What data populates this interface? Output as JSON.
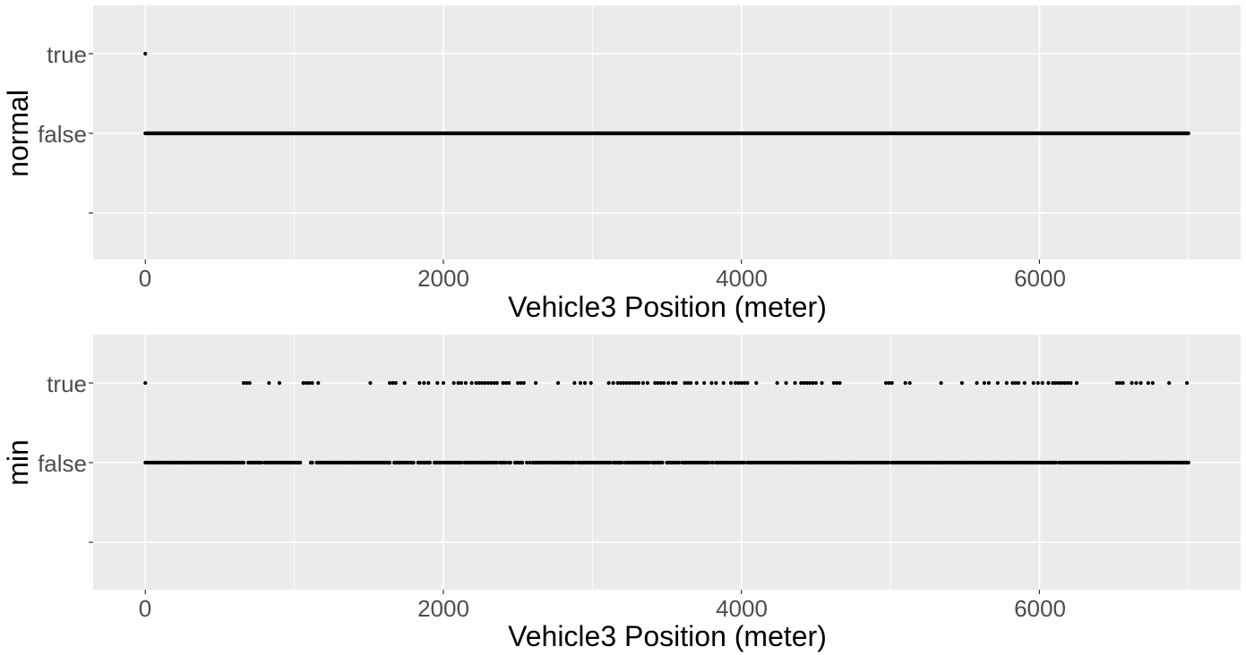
{
  "colors": {
    "panel_background": "#ebebeb",
    "grid": "#ffffff",
    "points": "#000000",
    "tick_text": "#4d4d4d",
    "title_text": "#000000"
  },
  "chart_data": [
    {
      "type": "scatter",
      "title": "",
      "xlabel": "Vehicle3 Position (meter)",
      "ylabel": "normal",
      "xlim": [
        -350,
        7350
      ],
      "x_ticks": [
        0,
        2000,
        4000,
        6000
      ],
      "x_tick_labels": [
        "0",
        "2000",
        "4000",
        "6000"
      ],
      "y_categories": [
        "",
        "false",
        "true"
      ],
      "grid": true,
      "series": [
        {
          "category": "true",
          "x": [
            0
          ]
        },
        {
          "category": "false",
          "continuous_range": [
            0,
            7000
          ],
          "x": []
        }
      ]
    },
    {
      "type": "scatter",
      "title": "",
      "xlabel": "Vehicle3 Position (meter)",
      "ylabel": "min",
      "xlim": [
        -350,
        7350
      ],
      "x_ticks": [
        0,
        2000,
        4000,
        6000
      ],
      "x_tick_labels": [
        "0",
        "2000",
        "4000",
        "6000"
      ],
      "y_categories": [
        "",
        "false",
        "true"
      ],
      "grid": true,
      "series": [
        {
          "category": "true",
          "x": [
            0,
            660,
            680,
            700,
            830,
            900,
            1060,
            1080,
            1100,
            1120,
            1160,
            1510,
            1640,
            1660,
            1680,
            1740,
            1840,
            1870,
            1900,
            1960,
            2000,
            2070,
            2100,
            2120,
            2150,
            2190,
            2220,
            2240,
            2260,
            2280,
            2300,
            2320,
            2340,
            2360,
            2400,
            2420,
            2440,
            2500,
            2520,
            2540,
            2620,
            2770,
            2880,
            2920,
            2950,
            2990,
            3110,
            3140,
            3170,
            3190,
            3210,
            3230,
            3250,
            3270,
            3290,
            3310,
            3340,
            3370,
            3420,
            3440,
            3460,
            3480,
            3510,
            3540,
            3560,
            3620,
            3640,
            3660,
            3700,
            3750,
            3800,
            3830,
            3880,
            3930,
            3960,
            3980,
            4000,
            4020,
            4040,
            4100,
            4240,
            4300,
            4360,
            4400,
            4420,
            4440,
            4460,
            4480,
            4500,
            4540,
            4620,
            4640,
            4660,
            4970,
            4990,
            5010,
            5100,
            5130,
            5340,
            5480,
            5580,
            5630,
            5660,
            5720,
            5780,
            5820,
            5840,
            5860,
            5900,
            5960,
            5990,
            6020,
            6060,
            6090,
            6110,
            6130,
            6150,
            6170,
            6190,
            6210,
            6250,
            6520,
            6540,
            6560,
            6620,
            6650,
            6680,
            6730,
            6760,
            6870,
            6990
          ]
        },
        {
          "category": "false",
          "x": [
            0,
            10,
            20,
            30,
            40,
            50,
            60,
            70,
            80,
            90,
            100,
            110,
            120,
            130,
            140,
            150,
            160,
            170,
            180,
            190,
            200,
            210,
            220,
            230,
            240,
            250,
            260,
            270,
            280,
            290,
            300,
            310,
            320,
            330,
            340,
            350,
            360,
            370,
            380,
            390,
            400,
            410,
            420,
            430,
            440,
            450,
            460,
            470,
            480,
            490,
            500,
            510,
            520,
            530,
            540,
            550,
            560,
            570,
            580,
            590,
            600,
            610,
            620,
            630,
            640,
            650,
            660,
            690,
            700,
            710,
            720,
            730,
            740,
            750,
            760,
            770,
            780,
            800,
            810,
            820,
            830,
            840,
            850,
            860,
            870,
            880,
            890,
            900,
            910,
            920,
            930,
            940,
            950,
            960,
            970,
            980,
            990,
            1000,
            1010,
            1020,
            1030,
            1040,
            1110,
            1120,
            1150,
            1160,
            1170,
            1180,
            1190,
            1200,
            1210,
            1220,
            1230,
            1240,
            1250,
            1260,
            1270,
            1280,
            1290,
            1300,
            1310,
            1320,
            1330,
            1340,
            1350,
            1360,
            1370,
            1380,
            1390,
            1400,
            1410,
            1420,
            1430,
            1440,
            1450,
            1460,
            1470,
            1480,
            1490,
            1500,
            1510,
            1520,
            1530,
            1540,
            1550,
            1560,
            1570,
            1580,
            1590,
            1600,
            1610,
            1620,
            1630,
            1640,
            1670,
            1680,
            1690,
            1700,
            1710,
            1720,
            1730,
            1740,
            1750,
            1760,
            1770,
            1780,
            1790,
            1800,
            1830,
            1840,
            1850,
            1860,
            1870,
            1880,
            1890,
            1900,
            1910,
            1940,
            1950,
            1960,
            1970,
            1980,
            1990,
            2000,
            2010,
            2020,
            2030,
            2040,
            2050,
            2060,
            2070,
            2080,
            2090,
            2100,
            2110,
            2120,
            2140,
            2150,
            2160,
            2170,
            2180,
            2190,
            2200,
            2210,
            2220,
            2230,
            2240,
            2250,
            2260,
            2270,
            2280,
            2290,
            2300,
            2310,
            2320,
            2330,
            2340,
            2350,
            2360,
            2380,
            2390,
            2400,
            2410,
            2420,
            2440,
            2450,
            2480,
            2490,
            2500,
            2510,
            2520,
            2530,
            2560,
            2580,
            2600,
            2610,
            2620,
            2630,
            2640,
            2650,
            2660,
            2670,
            2680,
            2690,
            2700,
            2710,
            2720,
            2730,
            2740,
            2750,
            2760,
            2770,
            2780,
            2790,
            2800,
            2810,
            2820,
            2830,
            2840,
            2850,
            2860,
            2870,
            2880,
            2900,
            2910,
            2920,
            2930,
            2940,
            2950,
            2960,
            2970,
            2980,
            2990,
            3000,
            3010,
            3020,
            3030,
            3040,
            3050,
            3060,
            3070,
            3080,
            3090,
            3100,
            3110,
            3120,
            3140,
            3150,
            3160,
            3170,
            3180,
            3190,
            3200,
            3220,
            3230,
            3240,
            3250,
            3260,
            3270,
            3280,
            3290,
            3300,
            3310,
            3320,
            3330,
            3340,
            3350,
            3360,
            3370,
            3380,
            3400,
            3410,
            3420,
            3430,
            3440,
            3450,
            3460,
            3470,
            3500,
            3510,
            3520,
            3530,
            3540,
            3550,
            3560,
            3570,
            3580,
            3600,
            3610,
            3620,
            3630,
            3640,
            3650,
            3660,
            3670,
            3680,
            3690,
            3700,
            3710,
            3720,
            3730,
            3740,
            3750,
            3760,
            3770,
            3780,
            3800,
            3810,
            3830,
            3840,
            3850,
            3860,
            3870,
            3880,
            3890,
            3900,
            3910,
            3920,
            3930,
            3940,
            3950,
            3960,
            3970,
            3980,
            3990,
            4000,
            4010,
            4020,
            4040,
            4050,
            4060,
            4070,
            4080,
            4090,
            4100,
            4110,
            4120,
            4130,
            4140,
            4150,
            4160,
            4170,
            4180,
            4190,
            4200,
            4210,
            4220,
            4230,
            4240,
            4250,
            4260,
            4270,
            4280,
            4290,
            4300,
            4310,
            4320,
            4330,
            4340,
            4350,
            4360,
            4370,
            4380,
            4390,
            4400,
            4410,
            4420,
            4430,
            4440,
            4450,
            4460,
            4470,
            4480,
            4490,
            4500,
            4510,
            4520,
            4530,
            4540,
            4550,
            4560,
            4570,
            4580,
            4590,
            4600,
            4610,
            4620,
            4630,
            4640,
            4650,
            4660,
            4670,
            4680,
            4690,
            4700,
            4710,
            4720,
            4730,
            4740,
            4750,
            4760,
            4770,
            4780,
            4790,
            4800,
            4810,
            4820,
            4830,
            4840,
            4850,
            4860,
            4870,
            4880,
            4890,
            4900,
            4910,
            4920,
            4930,
            4940,
            4950,
            4960,
            4970,
            4980,
            4990,
            5010,
            5020,
            5030,
            5040,
            5050,
            5060,
            5070,
            5080,
            5090,
            5100,
            5110,
            5120,
            5130,
            5140,
            5150,
            5160,
            5170,
            5180,
            5190,
            5200,
            5210,
            5220,
            5230,
            5240,
            5250,
            5260,
            5270,
            5280,
            5290,
            5300,
            5310,
            5320,
            5330,
            5340,
            5350,
            5360,
            5370,
            5380,
            5390,
            5400,
            5410,
            5420,
            5430,
            5440,
            5450,
            5460,
            5470,
            5480,
            5490,
            5500,
            5510,
            5520,
            5530,
            5540,
            5550,
            5560,
            5570,
            5580,
            5590,
            5600,
            5610,
            5620,
            5630,
            5640,
            5650,
            5660,
            5670,
            5680,
            5690,
            5700,
            5710,
            5720,
            5730,
            5740,
            5750,
            5760,
            5770,
            5780,
            5790,
            5800,
            5810,
            5820,
            5830,
            5840,
            5850,
            5860,
            5870,
            5880,
            5890,
            5900,
            5910,
            5920,
            5930,
            5940,
            5950,
            5960,
            5970,
            5980,
            5990,
            6000,
            6010,
            6020,
            6030,
            6040,
            6050,
            6060,
            6070,
            6080,
            6090,
            6100,
            6110,
            6130,
            6140,
            6150,
            6160,
            6170,
            6180,
            6190,
            6200,
            6210,
            6220,
            6230,
            6240,
            6250,
            6260,
            6270,
            6280,
            6290,
            6300,
            6310,
            6320,
            6330,
            6340,
            6350,
            6360,
            6370,
            6380,
            6390,
            6400,
            6410,
            6420,
            6430,
            6440,
            6450,
            6460,
            6470,
            6480,
            6490,
            6500,
            6510,
            6520,
            6530,
            6540,
            6550,
            6560,
            6570,
            6580,
            6590,
            6600,
            6610,
            6620,
            6630,
            6640,
            6650,
            6660,
            6670,
            6680,
            6690,
            6700,
            6710,
            6720,
            6730,
            6740,
            6750,
            6760,
            6770,
            6780,
            6790,
            6800,
            6810,
            6820,
            6830,
            6840,
            6850,
            6860,
            6870,
            6880,
            6890,
            6900,
            6910,
            6920,
            6930,
            6940,
            6950,
            6960,
            6970,
            6980,
            6990,
            7000
          ]
        }
      ]
    }
  ]
}
